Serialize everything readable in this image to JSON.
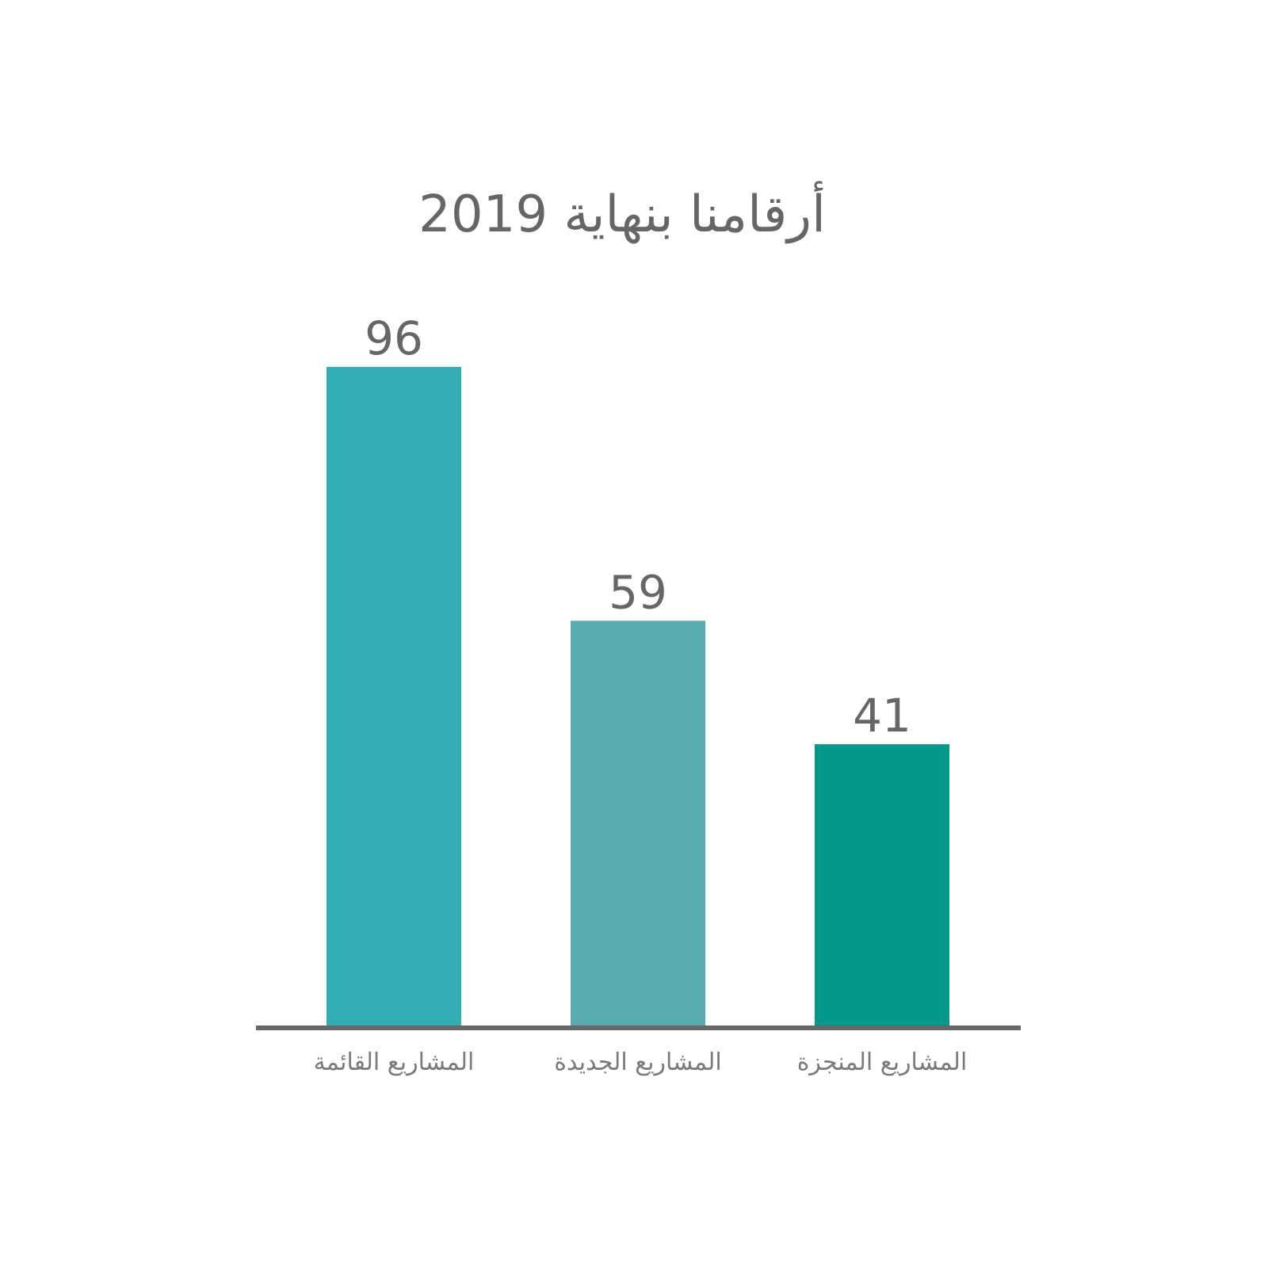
{
  "chart_data": {
    "type": "bar",
    "title": "أرقامنا بنهاية 2019",
    "xlabel": "",
    "ylabel": "",
    "categories": [
      "المشاريع القائمة",
      "المشاريع الجديدة",
      "المشاريع المنجزة"
    ],
    "values": [
      96,
      59,
      41
    ],
    "colors": [
      "#33adb2",
      "#59aaae",
      "#02998a"
    ],
    "ylim": [
      0,
      96
    ],
    "grid": false,
    "axis_color": "#666666",
    "text_color": "#666666"
  }
}
